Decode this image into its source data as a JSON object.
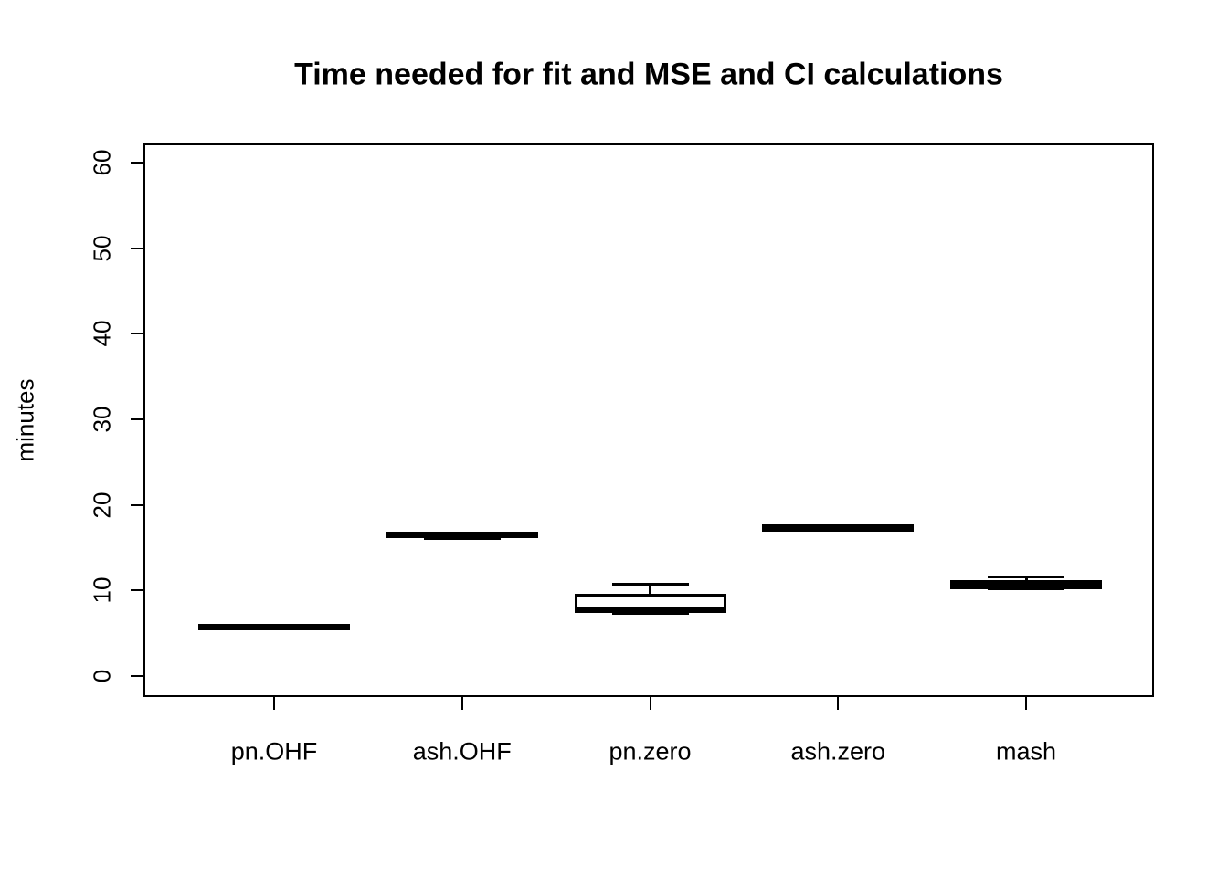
{
  "chart_data": {
    "type": "boxplot",
    "title": "Time needed for fit and MSE and CI calculations",
    "xlabel": "",
    "ylabel": "minutes",
    "ylim": [
      0,
      60
    ],
    "grid": false,
    "legend": "none",
    "y_ticks": [
      0,
      10,
      20,
      30,
      40,
      50,
      60
    ],
    "categories": [
      "pn.OHF",
      "ash.OHF",
      "pn.zero",
      "ash.zero",
      "mash"
    ],
    "series": [
      {
        "name": "pn.OHF",
        "low": 5.5,
        "q1": 5.6,
        "median": 5.7,
        "q3": 5.8,
        "high": 5.9
      },
      {
        "name": "ash.OHF",
        "low": 16.1,
        "q1": 16.35,
        "median": 16.45,
        "q3": 16.55,
        "high": 16.7
      },
      {
        "name": "pn.zero",
        "low": 7.35,
        "q1": 7.55,
        "median": 7.7,
        "q3": 9.5,
        "high": 10.7
      },
      {
        "name": "ash.zero",
        "low": 17.0,
        "q1": 17.25,
        "median": 17.3,
        "q3": 17.4,
        "high": 17.6
      },
      {
        "name": "mash",
        "low": 10.2,
        "q1": 10.35,
        "median": 10.7,
        "q3": 11.05,
        "high": 11.6
      }
    ],
    "colors": {
      "line": "#000000",
      "box_fill": "#ffffff",
      "background": "#ffffff"
    }
  }
}
